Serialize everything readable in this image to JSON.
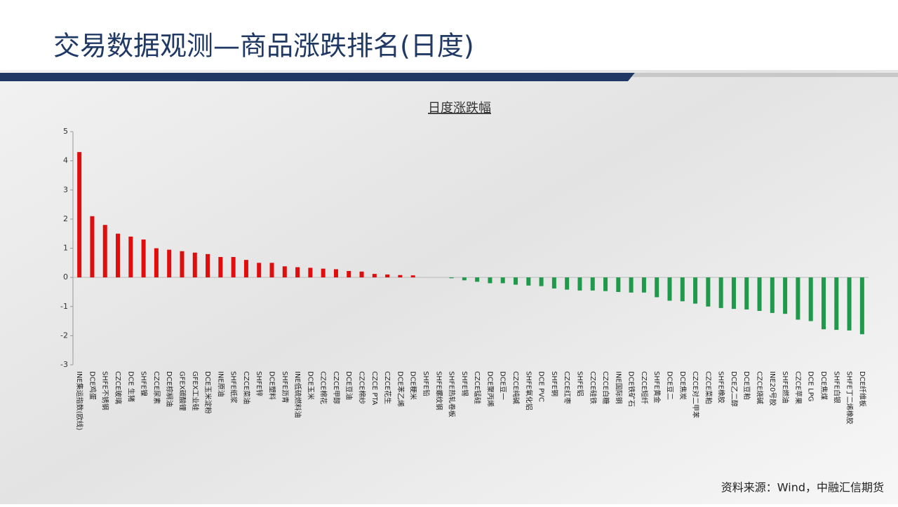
{
  "header": {
    "title": "交易数据观测—商品涨跌排名(日度)"
  },
  "footer": {
    "source": "资料来源：Wind，中融汇信期货"
  },
  "chart_data": {
    "type": "bar",
    "title": "日度涨跌幅",
    "categories": [
      "INE集运指数(欧线)",
      "DCE鸡蛋",
      "SHFE不锈钢",
      "CZCE玻璃",
      "DCE 生猪",
      "SHFE镍",
      "CZCE尿素",
      "DCE棕榈油",
      "GFEX碳酸锂",
      "GFEX工业硅",
      "DCE玉米淀粉",
      "INE原油",
      "SHFE纸浆",
      "CZCE菜油",
      "SHFE锌",
      "DCE塑料",
      "SHFE沥青",
      "INE低硫燃料油",
      "DCE玉米",
      "CZCE棉花",
      "CZCE甲醇",
      "DCE豆油",
      "CZCE棉纱",
      "CZCE PTA",
      "CZCE花生",
      "DCE苯乙烯",
      "DCE粳米",
      "SHFE铅",
      "SHFE螺纹钢",
      "SHFE热轧卷板",
      "SHFE锡",
      "CZCE锰硅",
      "DCE聚丙烯",
      "DCE豆一",
      "CZCE纯碱",
      "SHFE氧化铝",
      "DCE PVC",
      "SHFE铜",
      "CZCE红枣",
      "SHFE铝",
      "CZCE硅铁",
      "CZCE白糖",
      "INE国际铜",
      "DCE铁矿石",
      "CZCE短纤",
      "SHFE黄金",
      "DCE豆二",
      "DCE焦炭",
      "CZCE对二甲苯",
      "CZCE菜粕",
      "SHFE橡胶",
      "DCE乙二醇",
      "DCE豆粕",
      "CZCE烧碱",
      "INE20号胶",
      "SHFE燃油",
      "CZCE苹果",
      "DCE LPG",
      "DCE焦煤",
      "SHFE白银",
      "SHFE丁二烯橡胶",
      "DCE纤维板"
    ],
    "values": [
      4.3,
      2.1,
      1.8,
      1.5,
      1.4,
      1.3,
      1.0,
      0.95,
      0.9,
      0.85,
      0.8,
      0.7,
      0.7,
      0.6,
      0.5,
      0.5,
      0.38,
      0.35,
      0.33,
      0.3,
      0.28,
      0.22,
      0.2,
      0.12,
      0.1,
      0.08,
      0.07,
      0,
      0,
      -0.03,
      -0.1,
      -0.15,
      -0.2,
      -0.2,
      -0.25,
      -0.28,
      -0.3,
      -0.38,
      -0.42,
      -0.45,
      -0.45,
      -0.47,
      -0.5,
      -0.52,
      -0.52,
      -0.68,
      -0.8,
      -0.82,
      -0.9,
      -1.0,
      -1.05,
      -1.08,
      -1.1,
      -1.15,
      -1.22,
      -1.25,
      -1.45,
      -1.5,
      -1.78,
      -1.8,
      -1.82,
      -1.95
    ],
    "colors": {
      "positive": "#e00d0d",
      "negative": "#1f9a4b"
    },
    "ylim": [
      -3,
      5
    ],
    "yticks": [
      -3,
      -2,
      -1,
      0,
      1,
      2,
      3,
      4,
      5
    ]
  }
}
